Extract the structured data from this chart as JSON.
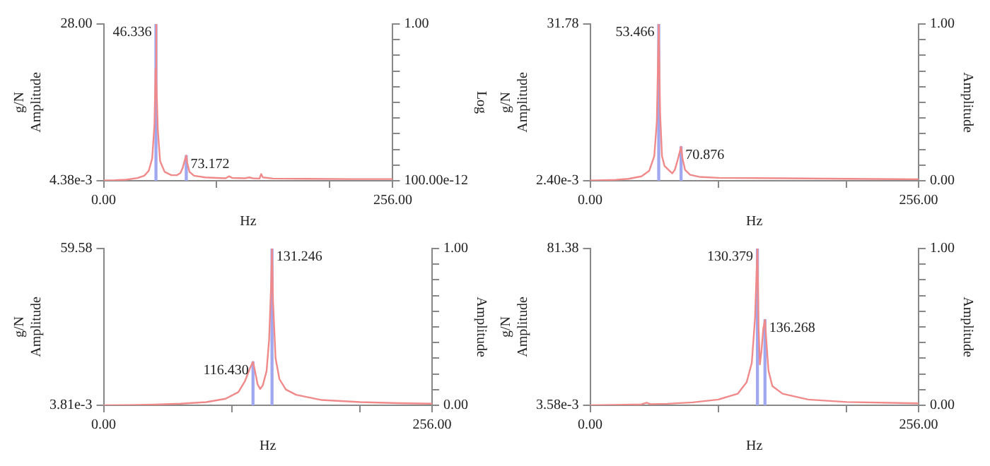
{
  "chart_data": [
    {
      "type": "line",
      "xlabel": "Hz",
      "ylabel": "g/N\nAmplitude",
      "y2label": "Log",
      "log": "y2",
      "xlim": [
        0,
        256
      ],
      "xticks": [
        {
          "value": 0,
          "label": "0.00"
        },
        {
          "value": 100,
          "label": null
        },
        {
          "value": 200,
          "label": null
        },
        {
          "value": 256,
          "label": "256.00"
        }
      ],
      "ylim": [
        0.00438,
        28
      ],
      "yticks": [
        {
          "value": 0.00438,
          "label": "4.38e-3"
        },
        {
          "value": 28,
          "label": "28.00"
        }
      ],
      "y2lim": [
        1e-10,
        1
      ],
      "y2ticks": [
        {
          "value": 1e-10,
          "label": "100.00e-12"
        },
        {
          "value": 1e-09,
          "label": null
        },
        {
          "value": 1e-08,
          "label": null
        },
        {
          "value": 1e-07,
          "label": null
        },
        {
          "value": 1e-06,
          "label": null
        },
        {
          "value": 1e-05,
          "label": null
        },
        {
          "value": 0.0001,
          "label": null
        },
        {
          "value": 0.001,
          "label": null
        },
        {
          "value": 0.01,
          "label": null
        },
        {
          "value": 0.1,
          "label": null
        },
        {
          "value": 1,
          "label": "1.00"
        }
      ],
      "series": [
        {
          "color": "#f08a8a",
          "x": [
            0,
            10,
            20,
            30,
            36,
            40,
            43,
            45,
            46,
            46.336,
            47,
            48,
            50,
            54,
            60,
            65,
            68,
            70,
            72,
            73.172,
            74,
            76,
            80,
            90,
            100,
            108,
            111,
            114,
            125,
            129,
            132,
            138,
            139.5,
            141,
            150,
            180,
            220,
            256
          ],
          "values": [
            0.05,
            0.1,
            0.2,
            0.5,
            0.9,
            1.8,
            4,
            10,
            20,
            28,
            18,
            9,
            3.5,
            1.6,
            1.0,
            1.0,
            1.4,
            2.3,
            3.8,
            4.5,
            3.2,
            1.6,
            0.9,
            0.6,
            0.5,
            0.45,
            0.8,
            0.5,
            0.45,
            0.6,
            0.45,
            0.4,
            1.2,
            0.6,
            0.4,
            0.35,
            0.3,
            0.3
          ]
        },
        {
          "type": "bar",
          "color": "#a0a8f0",
          "x": [
            46.336,
            73.172
          ],
          "values": [
            28,
            4.5
          ]
        }
      ],
      "annotations": [
        {
          "text": "46.336",
          "x": 46.336,
          "y": 28
        },
        {
          "text": "73.172",
          "x": 73.172,
          "y": 4.5
        }
      ]
    },
    {
      "type": "line",
      "xlabel": "Hz",
      "ylabel": "g/N\nAmplitude",
      "y2label": "Amplitude",
      "xlim": [
        0,
        256
      ],
      "xticks": [
        {
          "value": 0,
          "label": "0.00"
        },
        {
          "value": 100,
          "label": null
        },
        {
          "value": 200,
          "label": null
        },
        {
          "value": 256,
          "label": "256.00"
        }
      ],
      "ylim": [
        0.0024,
        31.78
      ],
      "yticks": [
        {
          "value": 0.0024,
          "label": "2.40e-3"
        },
        {
          "value": 31.78,
          "label": "31.78"
        }
      ],
      "y2lim": [
        0,
        1
      ],
      "y2ticks": [
        {
          "value": 0,
          "label": "0.00"
        },
        {
          "value": 0.1,
          "label": null
        },
        {
          "value": 0.2,
          "label": null
        },
        {
          "value": 0.3,
          "label": null
        },
        {
          "value": 0.4,
          "label": null
        },
        {
          "value": 0.5,
          "label": null
        },
        {
          "value": 0.6,
          "label": null
        },
        {
          "value": 0.7,
          "label": null
        },
        {
          "value": 0.8,
          "label": null
        },
        {
          "value": 0.9,
          "label": null
        },
        {
          "value": 1,
          "label": "1.00"
        }
      ],
      "series": [
        {
          "color": "#f08a8a",
          "x": [
            0,
            10,
            20,
            30,
            40,
            46,
            50,
            52,
            53.466,
            54.5,
            56,
            58,
            62,
            64,
            66,
            68,
            70.876,
            72,
            74,
            78,
            85,
            100,
            150,
            200,
            256
          ],
          "values": [
            0.05,
            0.1,
            0.2,
            0.4,
            0.9,
            2,
            5,
            12,
            31.78,
            14,
            5,
            3,
            2,
            1.5,
            2.2,
            4,
            6.9,
            4.5,
            2.2,
            1.2,
            0.8,
            0.6,
            0.5,
            0.4,
            0.3
          ]
        },
        {
          "type": "bar",
          "color": "#a0a8f0",
          "x": [
            53.466,
            70.876
          ],
          "values": [
            31.78,
            6.9
          ]
        }
      ],
      "annotations": [
        {
          "text": "53.466",
          "x": 53.466,
          "y": 31.78
        },
        {
          "text": "70.876",
          "x": 70.876,
          "y": 6.9
        }
      ]
    },
    {
      "type": "line",
      "xlabel": "Hz",
      "ylabel": "g/N\nAmplitude",
      "y2label": "Amplitude",
      "xlim": [
        0,
        256
      ],
      "xticks": [
        {
          "value": 0,
          "label": "0.00"
        },
        {
          "value": 100,
          "label": null
        },
        {
          "value": 200,
          "label": null
        },
        {
          "value": 256,
          "label": "256.00"
        }
      ],
      "ylim": [
        0.00381,
        59.58
      ],
      "yticks": [
        {
          "value": 0.00381,
          "label": "3.81e-3"
        },
        {
          "value": 59.58,
          "label": "59.58"
        }
      ],
      "y2lim": [
        0,
        1
      ],
      "y2ticks": [
        {
          "value": 0,
          "label": "0.00"
        },
        {
          "value": 0.1,
          "label": null
        },
        {
          "value": 0.2,
          "label": null
        },
        {
          "value": 0.3,
          "label": null
        },
        {
          "value": 0.4,
          "label": null
        },
        {
          "value": 0.5,
          "label": null
        },
        {
          "value": 0.6,
          "label": null
        },
        {
          "value": 0.7,
          "label": null
        },
        {
          "value": 0.8,
          "label": null
        },
        {
          "value": 0.9,
          "label": null
        },
        {
          "value": 1,
          "label": "1.00"
        }
      ],
      "series": [
        {
          "color": "#f08a8a",
          "x": [
            0,
            20,
            40,
            60,
            80,
            95,
            105,
            110,
            114,
            116.43,
            118,
            120,
            122,
            124,
            127,
            129,
            130.5,
            131.246,
            132,
            134,
            137,
            142,
            150,
            170,
            200,
            230,
            256
          ],
          "values": [
            0.05,
            0.1,
            0.3,
            0.6,
            1.2,
            2.5,
            5,
            9,
            14,
            16.5,
            13,
            8,
            6.2,
            7.5,
            13,
            25,
            45,
            59.58,
            40,
            18,
            10,
            6,
            4,
            2,
            1.2,
            0.8,
            0.6
          ]
        },
        {
          "type": "bar",
          "color": "#a0a8f0",
          "x": [
            116.43,
            131.246
          ],
          "values": [
            16.5,
            59.58
          ]
        }
      ],
      "annotations": [
        {
          "text": "116.430",
          "x": 116.43,
          "y": 16.5
        },
        {
          "text": "131.246",
          "x": 131.246,
          "y": 59.58
        }
      ]
    },
    {
      "type": "line",
      "xlabel": "Hz",
      "ylabel": "g/N\nAmplitude",
      "y2label": "Amplitude",
      "xlim": [
        0,
        256
      ],
      "xticks": [
        {
          "value": 0,
          "label": "0.00"
        },
        {
          "value": 100,
          "label": null
        },
        {
          "value": 200,
          "label": null
        },
        {
          "value": 256,
          "label": "256.00"
        }
      ],
      "ylim": [
        0.00358,
        81.38
      ],
      "yticks": [
        {
          "value": 0.00358,
          "label": "3.58e-3"
        },
        {
          "value": 81.38,
          "label": "81.38"
        }
      ],
      "y2lim": [
        0,
        1
      ],
      "y2ticks": [
        {
          "value": 0,
          "label": "0.00"
        },
        {
          "value": 0.1,
          "label": null
        },
        {
          "value": 0.2,
          "label": null
        },
        {
          "value": 0.3,
          "label": null
        },
        {
          "value": 0.4,
          "label": null
        },
        {
          "value": 0.5,
          "label": null
        },
        {
          "value": 0.6,
          "label": null
        },
        {
          "value": 0.7,
          "label": null
        },
        {
          "value": 0.8,
          "label": null
        },
        {
          "value": 0.9,
          "label": null
        },
        {
          "value": 1,
          "label": "1.00"
        }
      ],
      "series": [
        {
          "color": "#f08a8a",
          "x": [
            0,
            20,
            40,
            44,
            47,
            60,
            80,
            100,
            115,
            122,
            126,
            128.5,
            130.379,
            131.3,
            132.3,
            133.5,
            135,
            136.268,
            137.5,
            139,
            142,
            150,
            170,
            200,
            256
          ],
          "values": [
            0.05,
            0.2,
            0.5,
            1.3,
            0.6,
            0.8,
            1.5,
            3,
            6,
            12,
            22,
            45,
            81.38,
            40,
            21.2,
            28,
            40,
            44.4,
            32,
            18,
            10,
            6,
            3,
            1.7,
            1.0
          ]
        },
        {
          "type": "bar",
          "color": "#a0a8f0",
          "x": [
            130.379,
            136.268
          ],
          "values": [
            81.38,
            44.4
          ]
        }
      ],
      "annotations": [
        {
          "text": "130.379",
          "x": 130.379,
          "y": 81.38
        },
        {
          "text": "136.268",
          "x": 136.268,
          "y": 44.4
        }
      ]
    }
  ]
}
